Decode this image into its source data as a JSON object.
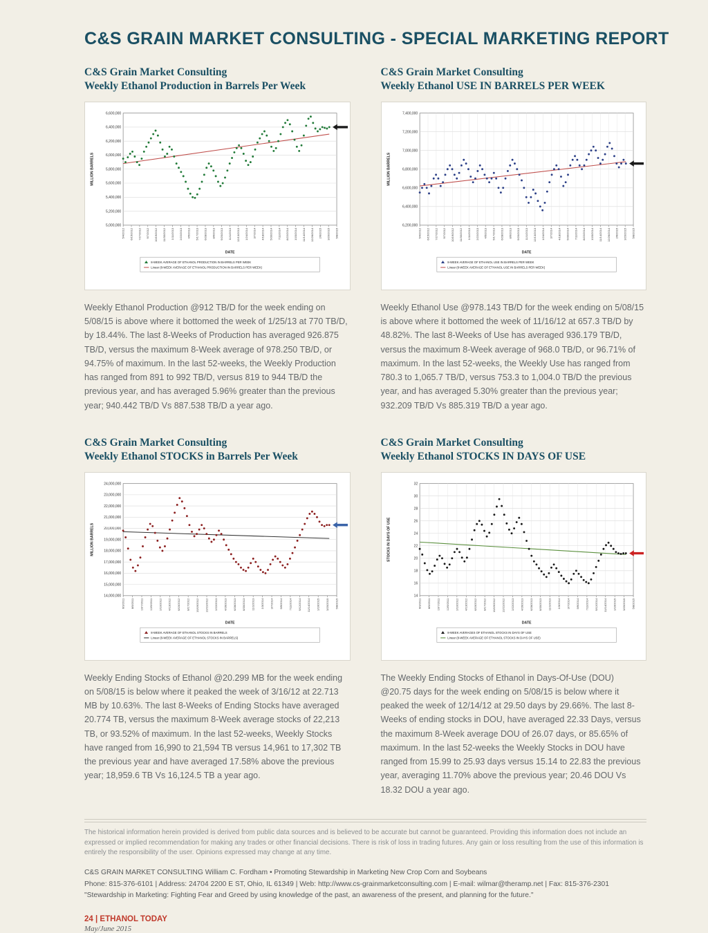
{
  "colors": {
    "header_navy": "#1a4f63",
    "accent_red": "#c0392b",
    "page_background": "#f2efe6"
  },
  "header": {
    "title": "C&S GRAIN MARKET CONSULTING - SPECIAL MARKETING REPORT"
  },
  "panels": [
    {
      "title_line1": "C&S Grain Market Consulting",
      "title_line2": "Weekly Ethanol Production in Barrels Per Week",
      "body": "Weekly Ethanol Production @912 TB/D for the week ending on 5/08/15 is above where it bottomed the week of 1/25/13 at 770 TB/D, by 18.44%. The last 8-Weeks of Production has averaged 926.875 TB/D, versus the maximum 8-Week average of 978.250 TB/D, or 94.75% of maximum. In the last 52-weeks, the Weekly Production has ranged from 891 to 992 TB/D, versus 819 to 944 TB/D the previous year, and has averaged 5.96% greater than the previous year; 940.442 TB/D Vs 887.538 TB/D a year ago."
    },
    {
      "title_line1": "C&S Grain Market Consulting",
      "title_line2": "Weekly Ethanol USE IN BARRELS PER WEEK",
      "body": "Weekly Ethanol Use @978.143 TB/D for the week ending on 5/08/15 is above where it bottomed the week of 11/16/12 at 657.3 TB/D by 48.82%. The last 8-Weeks of Use has averaged 936.179 TB/D, versus the maximum 8-Week average of 968.0 TB/D, or 96.71% of maximum. In the last 52-weeks, the Weekly Use has ranged from 780.3 to 1,065.7 TB/D, versus 753.3 to 1,004.0 TB/D the previous year, and has averaged 5.30% greater than the previous year; 932.209 TB/D Vs 885.319 TB/D a year ago."
    },
    {
      "title_line1": "C&S Grain Market Consulting",
      "title_line2": "Weekly Ethanol STOCKS in Barrels Per Week",
      "body": "Weekly Ending Stocks of Ethanol @20.299 MB for the week ending on 5/08/15 is below where it peaked the week of 3/16/12 at 22.713 MB by 10.63%. The last 8-Weeks of Ending Stocks have averaged 20.774 TB, versus the maximum 8-Week average stocks of 22,213 TB, or 93.52% of maximum. In the last 52-weeks, Weekly Stocks have ranged from 16,990 to 21,594 TB versus 14,961 to 17,302 TB the previous year and have averaged 17.58% above the previous year; 18,959.6 TB Vs 16,124.5 TB a year ago."
    },
    {
      "title_line1": "C&S Grain Market Consulting",
      "title_line2": "Weekly Ethanol STOCKS IN DAYS OF USE",
      "body": "The Weekly Ending Stocks of Ethanol in Days-Of-Use (DOU) @20.75 days for the week ending on 5/08/15 is below where it peaked the week of 12/14/12 at 29.50 days by 29.66%. The last 8-Weeks of ending stocks in DOU, have averaged 22.33 Days, versus the maximum 8-Week average DOU of 26.07 days, or 85.65% of maximum. In the last 52-weeks the Weekly Stocks in DOU have ranged from 15.99 to 25.93 days versus 15.14 to 22.83 the previous year, averaging 11.70% above the previous year; 20.46 DOU Vs 18.32 DOU a year ago."
    }
  ],
  "chart_data": [
    {
      "type": "line",
      "title": "Weekly Ethanol Production in Barrels Per Week",
      "xlabel": "DATE",
      "ylabel": "MILLION BARRELS",
      "ylim": [
        5.0,
        6.6
      ],
      "yticks": [
        "6,600,000",
        "6,400,000",
        "6,200,000",
        "6,000,000",
        "5,800,000",
        "5,600,000",
        "5,400,000",
        "5,200,000",
        "5,000,000"
      ],
      "x_dates": [
        "5/4/2012",
        "6/15/2012",
        "7/27/2012",
        "9/7/2012",
        "10/19/2012",
        "11/30/2012",
        "1/11/2013",
        "2/22/2013",
        "4/5/2013",
        "5/17/2013",
        "6/28/2013",
        "8/9/2013",
        "9/20/2013",
        "11/1/2013",
        "12/13/2013",
        "1/24/2014",
        "3/7/2014",
        "4/18/2014",
        "5/30/2014",
        "7/11/2014",
        "8/22/2014",
        "10/3/2014",
        "11/14/2014",
        "12/26/2014",
        "2/6/2015",
        "3/20/2015",
        "5/8/2015"
      ],
      "values": [
        5.95,
        5.9,
        5.97,
        6.02,
        6.05,
        5.98,
        5.9,
        5.86,
        5.95,
        6.05,
        6.12,
        6.18,
        6.24,
        6.3,
        6.35,
        6.28,
        6.18,
        6.08,
        5.98,
        6.02,
        6.12,
        6.08,
        5.98,
        5.88,
        5.82,
        5.76,
        5.7,
        5.62,
        5.52,
        5.45,
        5.4,
        5.39,
        5.44,
        5.52,
        5.62,
        5.72,
        5.82,
        5.88,
        5.84,
        5.78,
        5.7,
        5.62,
        5.56,
        5.6,
        5.68,
        5.78,
        5.88,
        5.96,
        6.04,
        6.1,
        6.14,
        6.1,
        6.02,
        5.92,
        5.86,
        5.9,
        5.98,
        6.08,
        6.18,
        6.24,
        6.3,
        6.34,
        6.28,
        6.2,
        6.12,
        6.06,
        6.1,
        6.2,
        6.3,
        6.4,
        6.46,
        6.5,
        6.44,
        6.34,
        6.22,
        6.12,
        6.06,
        6.14,
        6.28,
        6.42,
        6.52,
        6.55,
        6.46,
        6.38,
        6.34,
        6.37,
        6.4,
        6.39,
        6.38,
        6.4
      ],
      "trend": [
        5.88,
        6.3
      ],
      "series_color": "#217a38",
      "trend_color": "#c0504d",
      "arrow_color": "#1a1a1a",
      "vgrid": false,
      "legend_marker": "8-WEEK AVERAGE OF ETHANOL PRODUCTION IN BARRELS PER WEEK",
      "legend_linear": "Linear (8-WEEK AVERAGE OF ETHANOL PRODUCTION IN BARRELS PER WEEK)"
    },
    {
      "type": "line",
      "title": "Weekly Ethanol USE IN BARRELS PER WEEK",
      "xlabel": "DATE",
      "ylabel": "MILLION BARRELS",
      "ylim": [
        6.2,
        7.4
      ],
      "yticks": [
        "7,400,000",
        "7,200,000",
        "7,000,000",
        "6,800,000",
        "6,600,000",
        "6,400,000",
        "6,200,000"
      ],
      "x_dates": [
        "5/4/2012",
        "6/15/2012",
        "7/27/2012",
        "9/7/2012",
        "10/19/2012",
        "11/30/2012",
        "1/11/2013",
        "2/22/2013",
        "4/5/2013",
        "5/17/2013",
        "6/28/2013",
        "8/9/2013",
        "9/20/2013",
        "11/1/2013",
        "12/13/2013",
        "1/24/2014",
        "3/7/2014",
        "4/18/2014",
        "5/30/2014",
        "7/11/2014",
        "8/22/2014",
        "10/3/2014",
        "11/14/2014",
        "12/26/2014",
        "2/6/2015",
        "3/20/2015",
        "5/8/2015"
      ],
      "values": [
        6.55,
        6.6,
        6.64,
        6.6,
        6.54,
        6.62,
        6.7,
        6.74,
        6.7,
        6.62,
        6.66,
        6.74,
        6.8,
        6.84,
        6.8,
        6.74,
        6.7,
        6.76,
        6.84,
        6.9,
        6.86,
        6.8,
        6.72,
        6.66,
        6.7,
        6.78,
        6.84,
        6.8,
        6.74,
        6.7,
        6.66,
        6.7,
        6.76,
        6.7,
        6.6,
        6.55,
        6.6,
        6.7,
        6.78,
        6.84,
        6.9,
        6.86,
        6.8,
        6.74,
        6.68,
        6.6,
        6.5,
        6.44,
        6.5,
        6.58,
        6.54,
        6.46,
        6.4,
        6.36,
        6.44,
        6.56,
        6.66,
        6.74,
        6.8,
        6.84,
        6.8,
        6.72,
        6.62,
        6.66,
        6.74,
        6.84,
        6.9,
        6.94,
        6.9,
        6.84,
        6.8,
        6.84,
        6.9,
        6.96,
        7.0,
        7.04,
        7.0,
        6.92,
        6.86,
        6.9,
        6.96,
        7.04,
        7.08,
        7.02,
        6.94,
        6.86,
        6.82,
        6.86,
        6.9,
        6.86
      ],
      "trend": [
        6.62,
        6.88
      ],
      "series_color": "#2b3f87",
      "trend_color": "#c0504d",
      "arrow_color": "#1a1a1a",
      "vgrid": true,
      "legend_marker": "8-WEEK AVERAGE OF ETHANOL USE IN BARRELS PER WEEK",
      "legend_linear": "Linear (8-WEEK AVERAGE OF ETHANOL USE IN BARRELS PER WEEK)"
    },
    {
      "type": "line",
      "title": "Weekly Ethanol STOCKS in Barrels Per Week",
      "xlabel": "DATE",
      "ylabel": "MILLION BARRELS",
      "ylim": [
        14,
        24
      ],
      "yticks": [
        "24,000,000",
        "23,000,000",
        "22,000,000",
        "21,000,000",
        "20,000,000",
        "19,000,000",
        "18,000,000",
        "17,000,000",
        "16,000,000",
        "15,000,000",
        "14,000,000"
      ],
      "x_dates": [
        "6/3/2011",
        "8/5/2011",
        "10/7/2011",
        "12/9/2011",
        "2/10/2012",
        "4/13/2012",
        "6/15/2012",
        "8/17/2012",
        "10/19/2012",
        "12/21/2012",
        "2/22/2013",
        "4/26/2013",
        "6/28/2013",
        "8/30/2013",
        "11/1/2013",
        "1/3/2014",
        "3/7/2014",
        "5/9/2014",
        "7/11/2014",
        "9/12/2014",
        "11/14/2014",
        "1/16/2015",
        "3/20/2015",
        "5/8/2015"
      ],
      "values": [
        19.8,
        19.2,
        18.2,
        17.2,
        16.5,
        16.2,
        16.7,
        17.4,
        18.4,
        19.2,
        19.9,
        20.4,
        20.2,
        19.6,
        18.9,
        18.3,
        18.0,
        18.4,
        19.1,
        19.9,
        20.7,
        21.4,
        22.1,
        22.7,
        22.4,
        21.8,
        21.1,
        20.3,
        19.7,
        19.3,
        19.5,
        19.9,
        20.3,
        20.0,
        19.5,
        19.1,
        18.8,
        19.0,
        19.4,
        19.8,
        19.5,
        19.0,
        18.5,
        18.1,
        17.7,
        17.3,
        17.0,
        16.8,
        16.5,
        16.3,
        16.2,
        16.5,
        16.9,
        17.3,
        17.0,
        16.6,
        16.3,
        16.1,
        16.0,
        16.3,
        16.8,
        17.2,
        17.5,
        17.3,
        17.0,
        16.7,
        16.5,
        16.8,
        17.3,
        17.8,
        18.3,
        18.9,
        19.4,
        19.9,
        20.4,
        20.9,
        21.3,
        21.5,
        21.3,
        21.0,
        20.6,
        20.3,
        20.2,
        20.3,
        20.3
      ],
      "trend": [
        19.7,
        19.1
      ],
      "series_color": "#8c1f1f",
      "trend_color": "#333333",
      "arrow_color": "#3a63a8",
      "vgrid": false,
      "legend_marker": "8-WEEK AVERAGE OF ETHANOL STOCKS IN BARRELS",
      "legend_linear": "Linear (8-WEEK AVERAGE OF ETHANOL STOCKS IN BARRELS)"
    },
    {
      "type": "line",
      "title": "Weekly Ethanol STOCKS IN DAYS OF USE",
      "xlabel": "DATE",
      "ylabel": "STOCKS IN DAYS OF USE",
      "ylim": [
        14,
        32
      ],
      "yticks": [
        "32",
        "30",
        "28",
        "26",
        "24",
        "22",
        "20",
        "18",
        "16",
        "14"
      ],
      "x_dates": [
        "6/3/2011",
        "8/5/2011",
        "10/7/2011",
        "12/9/2011",
        "2/10/2012",
        "4/13/2012",
        "6/15/2012",
        "8/17/2012",
        "10/19/2012",
        "12/21/2012",
        "2/22/2013",
        "4/26/2013",
        "6/28/2013",
        "8/30/2013",
        "11/1/2013",
        "1/3/2014",
        "3/7/2014",
        "5/9/2014",
        "7/11/2014",
        "9/12/2014",
        "11/14/2014",
        "1/16/2015",
        "3/20/2015",
        "5/8/2015"
      ],
      "values": [
        21.5,
        20.6,
        19.2,
        18.1,
        17.5,
        17.9,
        18.8,
        19.8,
        20.4,
        20.0,
        19.1,
        18.5,
        19.0,
        20.0,
        21.0,
        21.5,
        21.0,
        20.1,
        19.5,
        20.1,
        21.5,
        23.0,
        24.5,
        25.5,
        26.0,
        25.4,
        24.4,
        23.5,
        24.1,
        25.5,
        27.0,
        28.3,
        29.5,
        28.4,
        27.0,
        25.6,
        24.6,
        24.0,
        24.8,
        25.8,
        26.5,
        25.5,
        24.2,
        22.8,
        21.5,
        20.4,
        19.5,
        19.0,
        18.4,
        17.9,
        17.4,
        17.0,
        17.6,
        18.5,
        19.0,
        18.4,
        17.8,
        17.2,
        16.7,
        16.3,
        16.0,
        16.6,
        17.5,
        18.0,
        17.5,
        17.0,
        16.5,
        16.2,
        16.0,
        16.6,
        17.6,
        18.6,
        19.6,
        20.6,
        21.5,
        22.1,
        22.5,
        22.0,
        21.5,
        21.0,
        20.8,
        20.7,
        20.8,
        20.8
      ],
      "trend": [
        22.6,
        20.6
      ],
      "series_color": "#1a1a1a",
      "trend_color": "#5a8f3c",
      "arrow_color": "#cc2222",
      "vgrid": true,
      "legend_marker": "8-WEEK AVERAGES OF ETHANOL STOCKS IN DAYS OF USE",
      "legend_linear": "Linear (8-WEEK AVERAGE OF ETHANOL STOCKS IN DAYS OF USE)"
    }
  ],
  "footer": {
    "disclaimer": "The historical information herein provided is derived from public data sources and is believed to be accurate but cannot be guaranteed. Providing this information does not include an expressed or implied recommendation for making any trades or other financial decisions. There is risk of loss in trading futures. Any gain or loss resulting from the use of this information is entirely the responsibility of the user. Opinions expressed may change at any time.",
    "contact_line1": "C&S GRAIN MARKET CONSULTING William C. Fordham • Promoting Stewardship in Marketing New Crop Corn and Soybeans",
    "contact_line2": "Phone: 815-376-6101 | Address: 24704 2200 E ST, Ohio, IL 61349 | Web: http://www.cs-grainmarketconsulting.com | E-mail: wilmar@theramp.net | Fax: 815-376-2301",
    "contact_line3": "\"Stewardship in Marketing: Fighting Fear and Greed by using knowledge of the past, an awareness of the present, and planning for the future.\"",
    "page_number": "24 | ETHANOL TODAY",
    "issue": "May/June 2015"
  }
}
